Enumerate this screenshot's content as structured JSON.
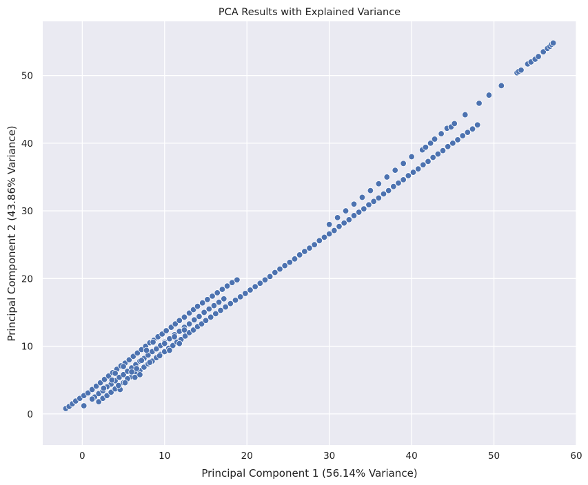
{
  "chart_data": {
    "type": "scatter",
    "title": "PCA Results with Explained Variance",
    "xlabel": "Principal Component 1 (56.14% Variance)",
    "ylabel": "Principal Component 2 (43.86% Variance)",
    "xlim": [
      -4.8,
      60
    ],
    "ylim": [
      -4.6,
      58
    ],
    "xticks": [
      0,
      10,
      20,
      30,
      40,
      50,
      60
    ],
    "yticks": [
      0,
      10,
      20,
      30,
      40,
      50
    ],
    "grid": true,
    "colors": {
      "background": "#EAEAF2",
      "grid": "#FFFFFF",
      "point": "#4C72B0",
      "edge": "#FFFFFF"
    },
    "series": [
      {
        "points": [
          [
            -2.0,
            0.8
          ],
          [
            -1.6,
            1.1
          ],
          [
            -1.2,
            1.5
          ],
          [
            -0.8,
            1.9
          ],
          [
            -0.3,
            2.3
          ],
          [
            0.2,
            2.7
          ],
          [
            0.7,
            3.1
          ],
          [
            1.2,
            3.6
          ],
          [
            1.7,
            4.1
          ],
          [
            2.2,
            4.6
          ],
          [
            2.7,
            5.1
          ],
          [
            3.2,
            5.6
          ],
          [
            3.7,
            6.1
          ],
          [
            4.2,
            6.6
          ],
          [
            4.7,
            7.1
          ],
          [
            5.2,
            7.5
          ],
          [
            5.7,
            8.0
          ],
          [
            6.2,
            8.5
          ],
          [
            6.7,
            9.0
          ],
          [
            7.2,
            9.5
          ],
          [
            7.7,
            10.0
          ],
          [
            8.2,
            10.5
          ],
          [
            8.7,
            10.9
          ],
          [
            9.2,
            11.4
          ],
          [
            9.7,
            11.8
          ],
          [
            10.2,
            12.3
          ],
          [
            10.8,
            12.8
          ],
          [
            11.3,
            13.3
          ],
          [
            11.8,
            13.8
          ],
          [
            12.4,
            14.3
          ],
          [
            13.0,
            14.9
          ],
          [
            13.5,
            15.4
          ],
          [
            14.0,
            15.9
          ],
          [
            14.6,
            16.4
          ],
          [
            15.2,
            16.9
          ],
          [
            15.8,
            17.4
          ],
          [
            16.4,
            17.9
          ],
          [
            17.0,
            18.4
          ],
          [
            17.6,
            18.9
          ],
          [
            18.2,
            19.4
          ],
          [
            18.8,
            19.8
          ],
          [
            1.5,
            2.5
          ],
          [
            2.0,
            3.0
          ],
          [
            2.5,
            3.4
          ],
          [
            3.0,
            3.9
          ],
          [
            3.5,
            4.4
          ],
          [
            4.0,
            4.9
          ],
          [
            4.5,
            5.4
          ],
          [
            5.0,
            5.8
          ],
          [
            5.5,
            6.3
          ],
          [
            6.0,
            6.8
          ],
          [
            6.5,
            7.3
          ],
          [
            7.0,
            7.8
          ],
          [
            7.5,
            8.2
          ],
          [
            8.0,
            8.7
          ],
          [
            8.5,
            9.2
          ],
          [
            9.0,
            9.7
          ],
          [
            9.5,
            10.1
          ],
          [
            10.0,
            10.6
          ],
          [
            10.6,
            11.1
          ],
          [
            11.2,
            11.7
          ],
          [
            11.8,
            12.2
          ],
          [
            12.4,
            12.8
          ],
          [
            13.0,
            13.3
          ],
          [
            13.6,
            13.9
          ],
          [
            14.2,
            14.4
          ],
          [
            14.8,
            15.0
          ],
          [
            15.4,
            15.5
          ],
          [
            16.0,
            16.0
          ],
          [
            16.6,
            16.5
          ],
          [
            17.2,
            17.0
          ],
          [
            2.0,
            1.8
          ],
          [
            2.5,
            2.3
          ],
          [
            3.0,
            2.7
          ],
          [
            3.5,
            3.2
          ],
          [
            4.0,
            3.7
          ],
          [
            4.5,
            4.2
          ],
          [
            5.0,
            4.6
          ],
          [
            5.5,
            5.1
          ],
          [
            6.0,
            5.5
          ],
          [
            6.5,
            6.0
          ],
          [
            7.0,
            6.4
          ],
          [
            7.5,
            6.9
          ],
          [
            8.0,
            7.4
          ],
          [
            8.5,
            7.8
          ],
          [
            9.0,
            8.3
          ],
          [
            9.5,
            8.8
          ],
          [
            10.0,
            9.2
          ],
          [
            10.5,
            9.7
          ],
          [
            11.0,
            10.1
          ],
          [
            11.5,
            10.6
          ],
          [
            12.0,
            11.0
          ],
          [
            12.5,
            11.5
          ],
          [
            13.0,
            12.0
          ],
          [
            13.5,
            12.4
          ],
          [
            14.0,
            12.9
          ],
          [
            14.5,
            13.3
          ],
          [
            15.0,
            13.8
          ],
          [
            15.6,
            14.3
          ],
          [
            16.2,
            14.8
          ],
          [
            16.8,
            15.3
          ],
          [
            17.4,
            15.8
          ],
          [
            18.0,
            16.3
          ],
          [
            18.6,
            16.8
          ],
          [
            19.2,
            17.3
          ],
          [
            19.8,
            17.8
          ],
          [
            20.4,
            18.3
          ],
          [
            21.0,
            18.8
          ],
          [
            21.6,
            19.3
          ],
          [
            22.2,
            19.8
          ],
          [
            22.8,
            20.3
          ],
          [
            23.4,
            20.9
          ],
          [
            24.0,
            21.4
          ],
          [
            24.6,
            21.9
          ],
          [
            25.2,
            22.4
          ],
          [
            25.8,
            22.9
          ],
          [
            26.4,
            23.5
          ],
          [
            27.0,
            24.0
          ],
          [
            27.6,
            24.5
          ],
          [
            28.2,
            25.0
          ],
          [
            28.8,
            25.6
          ],
          [
            29.4,
            26.1
          ],
          [
            30.0,
            26.6
          ],
          [
            30.6,
            27.1
          ],
          [
            31.2,
            27.7
          ],
          [
            31.8,
            28.2
          ],
          [
            32.4,
            28.7
          ],
          [
            33.0,
            29.3
          ],
          [
            33.6,
            29.8
          ],
          [
            34.2,
            30.3
          ],
          [
            34.8,
            30.9
          ],
          [
            35.4,
            31.4
          ],
          [
            36.0,
            31.9
          ],
          [
            36.6,
            32.5
          ],
          [
            37.2,
            33.0
          ],
          [
            37.8,
            33.6
          ],
          [
            38.4,
            34.1
          ],
          [
            39.0,
            34.6
          ],
          [
            39.6,
            35.2
          ],
          [
            40.2,
            35.7
          ],
          [
            40.8,
            36.2
          ],
          [
            41.4,
            36.8
          ],
          [
            42.0,
            37.3
          ],
          [
            42.6,
            37.9
          ],
          [
            43.2,
            38.4
          ],
          [
            43.8,
            38.9
          ],
          [
            44.4,
            39.5
          ],
          [
            45.0,
            40.0
          ],
          [
            45.6,
            40.5
          ],
          [
            46.2,
            41.1
          ],
          [
            46.8,
            41.6
          ],
          [
            47.4,
            42.1
          ],
          [
            48.0,
            42.7
          ],
          [
            30.0,
            28.0
          ],
          [
            31.0,
            29.0
          ],
          [
            32.0,
            30.0
          ],
          [
            33.0,
            31.0
          ],
          [
            34.0,
            32.0
          ],
          [
            35.0,
            33.0
          ],
          [
            36.0,
            34.0
          ],
          [
            37.0,
            35.0
          ],
          [
            38.0,
            36.0
          ],
          [
            39.0,
            37.0
          ],
          [
            40.0,
            38.0
          ],
          [
            41.3,
            39.0
          ],
          [
            41.7,
            39.4
          ],
          [
            42.3,
            40.0
          ],
          [
            42.8,
            40.6
          ],
          [
            43.6,
            41.4
          ],
          [
            44.3,
            42.2
          ],
          [
            44.8,
            42.4
          ],
          [
            45.2,
            42.9
          ],
          [
            46.5,
            44.2
          ],
          [
            48.2,
            45.9
          ],
          [
            49.4,
            47.1
          ],
          [
            50.9,
            48.5
          ],
          [
            52.8,
            50.4
          ],
          [
            53.0,
            50.6
          ],
          [
            53.3,
            50.8
          ],
          [
            54.1,
            51.7
          ],
          [
            54.5,
            52.0
          ],
          [
            55.0,
            52.4
          ],
          [
            55.4,
            52.8
          ],
          [
            56.0,
            53.5
          ],
          [
            56.5,
            54.0
          ],
          [
            56.8,
            54.3
          ],
          [
            57.0,
            54.6
          ],
          [
            57.2,
            54.8
          ],
          [
            3.0,
            4.0
          ],
          [
            4.0,
            6.0
          ],
          [
            5.0,
            7.0
          ],
          [
            5.5,
            5.2
          ],
          [
            6.0,
            6.2
          ],
          [
            6.6,
            6.7
          ],
          [
            7.2,
            7.9
          ],
          [
            7.8,
            9.4
          ],
          [
            8.2,
            7.6
          ],
          [
            8.6,
            10.6
          ],
          [
            9.0,
            9.6
          ],
          [
            9.4,
            8.6
          ],
          [
            10.0,
            10.4
          ],
          [
            10.6,
            9.4
          ],
          [
            11.2,
            11.4
          ],
          [
            11.8,
            10.4
          ],
          [
            12.4,
            12.4
          ],
          [
            4.6,
            3.6
          ],
          [
            5.2,
            4.6
          ],
          [
            6.4,
            5.4
          ],
          [
            7.0,
            5.8
          ],
          [
            3.6,
            5.0
          ],
          [
            4.4,
            4.2
          ],
          [
            2.6,
            3.8
          ],
          [
            1.2,
            2.2
          ],
          [
            0.2,
            1.2
          ]
        ]
      }
    ]
  }
}
